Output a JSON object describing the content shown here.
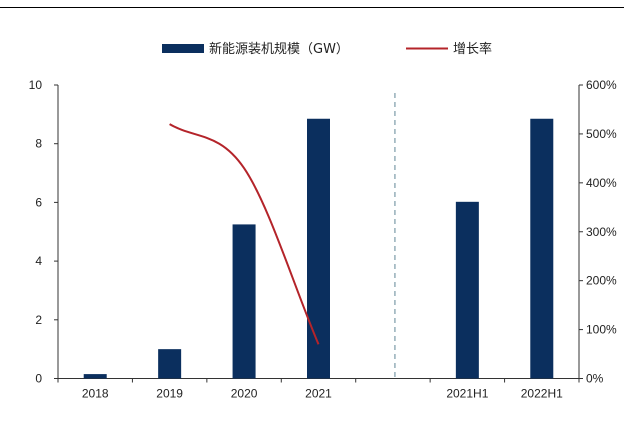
{
  "chart_data": {
    "type": "bar",
    "categories": [
      "2018",
      "2019",
      "2020",
      "2021",
      "",
      "2021H1",
      "2022H1"
    ],
    "series": [
      {
        "name": "新能源装机规模（GW）",
        "type": "bar",
        "axis": "left",
        "color": "#0b2f5e",
        "values": [
          0.15,
          1.0,
          5.25,
          8.85,
          null,
          6.02,
          8.85
        ]
      },
      {
        "name": "增长率",
        "type": "line",
        "axis": "right",
        "color": "#b4242a",
        "values": [
          null,
          5.2,
          4.3,
          0.7,
          null,
          null,
          null
        ]
      }
    ],
    "y_left": {
      "ylim": [
        0,
        10
      ],
      "ticks": [
        "0",
        "2",
        "4",
        "6",
        "8",
        "10"
      ]
    },
    "y_right": {
      "ylim": [
        0,
        6
      ],
      "ticks": [
        "0%",
        "100%",
        "200%",
        "300%",
        "400%",
        "500%",
        "600%"
      ]
    },
    "separator": "dashed vertical line between 2021 and 2021H1",
    "legend_position": "top-center",
    "grid": false
  }
}
